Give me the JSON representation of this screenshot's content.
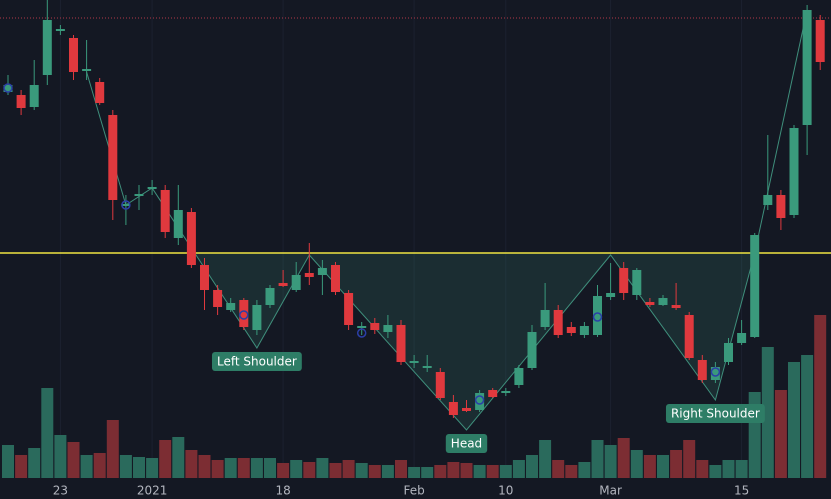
{
  "chart_data": {
    "type": "candlestick",
    "categories": [
      null,
      null,
      null,
      null,
      "23",
      null,
      null,
      null,
      null,
      null,
      null,
      "2021",
      null,
      null,
      null,
      null,
      null,
      null,
      null,
      null,
      null,
      "18",
      null,
      null,
      null,
      null,
      null,
      null,
      null,
      null,
      null,
      "Feb",
      null,
      null,
      null,
      null,
      null,
      null,
      "10",
      null,
      null,
      null,
      null,
      null,
      null,
      null,
      "Mar",
      null,
      null,
      null,
      null,
      null,
      null,
      null,
      null,
      null,
      "15",
      null,
      null,
      null,
      null,
      null,
      null
    ],
    "open": [
      408,
      405,
      393,
      425,
      469,
      462,
      429,
      418,
      385,
      294,
      304,
      311,
      310,
      262,
      288,
      235,
      210,
      190,
      200,
      170,
      195,
      217,
      210,
      227,
      225,
      235,
      207,
      172,
      177,
      168,
      175,
      137,
      132,
      128,
      98,
      92,
      90,
      110,
      107,
      115,
      132,
      173,
      190,
      173,
      165,
      165,
      203,
      232,
      205,
      198,
      195,
      195,
      185,
      140,
      120,
      138,
      157,
      163,
      295,
      305,
      285,
      375,
      480
    ],
    "high": [
      425,
      410,
      440,
      500,
      475,
      465,
      460,
      422,
      390,
      305,
      315,
      320,
      315,
      315,
      292,
      242,
      215,
      202,
      202,
      200,
      215,
      230,
      238,
      257,
      240,
      238,
      210,
      178,
      182,
      185,
      180,
      145,
      145,
      132,
      105,
      100,
      110,
      112,
      112,
      135,
      175,
      217,
      195,
      178,
      178,
      215,
      237,
      238,
      232,
      202,
      205,
      217,
      188,
      145,
      138,
      162,
      180,
      267,
      365,
      310,
      375,
      495,
      485
    ],
    "low": [
      405,
      385,
      390,
      415,
      465,
      420,
      420,
      395,
      280,
      275,
      290,
      305,
      262,
      255,
      232,
      190,
      185,
      188,
      170,
      165,
      192,
      213,
      208,
      215,
      205,
      205,
      170,
      165,
      166,
      162,
      135,
      132,
      128,
      100,
      82,
      88,
      88,
      102,
      104,
      112,
      130,
      170,
      162,
      164,
      162,
      163,
      200,
      200,
      200,
      193,
      194,
      190,
      140,
      117,
      117,
      135,
      155,
      162,
      290,
      270,
      282,
      345,
      430
    ],
    "close": [
      415,
      392,
      415,
      480,
      471,
      428,
      431,
      397,
      300,
      296,
      306,
      313,
      268,
      290,
      235,
      210,
      193,
      197,
      173,
      195,
      212,
      214,
      225,
      223,
      232,
      208,
      175,
      174,
      170,
      175,
      138,
      139,
      134,
      102,
      85,
      89,
      107,
      103,
      109,
      132,
      168,
      190,
      165,
      167,
      174,
      204,
      207,
      207,
      230,
      195,
      202,
      192,
      142,
      120,
      133,
      157,
      167,
      265,
      305,
      282,
      372,
      490,
      438
    ],
    "volume": [
      33,
      23,
      30,
      90,
      43,
      36,
      23,
      25,
      58,
      23,
      21,
      20,
      38,
      41,
      28,
      23,
      18,
      20,
      20,
      20,
      20,
      15,
      18,
      16,
      20,
      15,
      18,
      15,
      13,
      13,
      18,
      11,
      11,
      13,
      16,
      15,
      13,
      13,
      13,
      18,
      23,
      38,
      18,
      13,
      16,
      38,
      33,
      40,
      28,
      23,
      23,
      28,
      38,
      18,
      13,
      18,
      18,
      86,
      131,
      88,
      116,
      123,
      163
    ],
    "ylim": [
      0,
      500
    ],
    "volume_ylim": [
      0,
      478
    ],
    "up_color": "#3a9a7c",
    "down_color": "#e0393e",
    "volume_up_color": "#2a6a5c",
    "volume_down_color": "#7c2d33",
    "neckline": 247,
    "neckline_color": "#f0e442",
    "resistance": 482,
    "resistance_color": "#b0384a",
    "pattern": {
      "x": [
        6,
        9,
        11,
        19,
        23,
        35,
        46,
        54,
        57,
        61
      ],
      "values": [
        428,
        295,
        312,
        152,
        245,
        70,
        245,
        100,
        247,
        490
      ],
      "color": "#3f8f7c"
    },
    "markers": {
      "x": [
        0,
        9,
        18,
        27,
        36,
        45,
        54
      ],
      "values": [
        412,
        295,
        185,
        167,
        100,
        183,
        128
      ],
      "color": "#2b3fa8"
    },
    "annotations": [
      {
        "text": "Left Shoulder",
        "x": 19,
        "value": 152
      },
      {
        "text": "Head",
        "x": 35,
        "value": 70
      },
      {
        "text": "Right Shoulder",
        "x": 54,
        "value": 100
      }
    ]
  }
}
